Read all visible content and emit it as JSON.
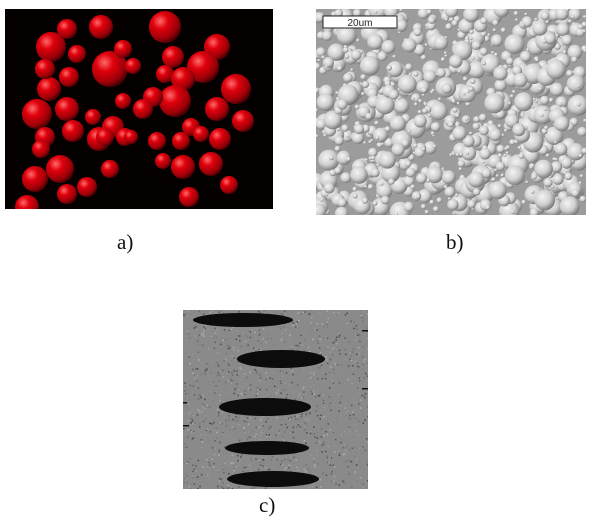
{
  "figure": {
    "panels": [
      {
        "id": "a",
        "caption": "a)",
        "description_icon": "red-spheres-render"
      },
      {
        "id": "b",
        "caption": "b)",
        "description_icon": "sem-micrograph",
        "scale_bar_label": "20um"
      },
      {
        "id": "c",
        "caption": "c)",
        "description_icon": "greyscale-cross-section"
      }
    ]
  },
  "colors": {
    "background": "#ffffff",
    "sphere": "#c4000a",
    "panel_a_bg": "#050000",
    "panel_b_bg": "#bdbdbd",
    "panel_c_bg": "#8a8a8a"
  }
}
